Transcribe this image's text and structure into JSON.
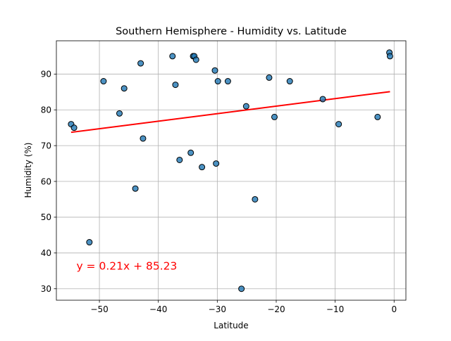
{
  "colors": {
    "background": "#ffffff",
    "grid": "#b0b0b0",
    "point_fill": "#1f77b4",
    "point_edge": "#000000",
    "regression_line": "#ff0000",
    "equation_text": "#ff0000"
  },
  "chart_data": {
    "type": "scatter",
    "title": "Southern Hemisphere - Humidity vs. Latitude",
    "xlabel": "Latitude",
    "ylabel": "Humidity (%)",
    "xlim": [
      -57.3,
      2.0
    ],
    "ylim": [
      26.8,
      99.3
    ],
    "xticks": [
      -50,
      -40,
      -30,
      -20,
      -10,
      0
    ],
    "xtick_labels": [
      "−50",
      "−40",
      "−30",
      "−20",
      "−10",
      "0"
    ],
    "yticks": [
      30,
      40,
      50,
      60,
      70,
      80,
      90
    ],
    "ytick_labels": [
      "30",
      "40",
      "50",
      "60",
      "70",
      "80",
      "90"
    ],
    "grid": true,
    "points": [
      {
        "x": -54.8,
        "y": 76
      },
      {
        "x": -54.3,
        "y": 75
      },
      {
        "x": -51.7,
        "y": 43
      },
      {
        "x": -49.3,
        "y": 88
      },
      {
        "x": -46.6,
        "y": 79
      },
      {
        "x": -45.8,
        "y": 86
      },
      {
        "x": -43.9,
        "y": 58
      },
      {
        "x": -43.0,
        "y": 93
      },
      {
        "x": -42.6,
        "y": 72
      },
      {
        "x": -37.6,
        "y": 95
      },
      {
        "x": -37.1,
        "y": 87
      },
      {
        "x": -36.4,
        "y": 66
      },
      {
        "x": -34.5,
        "y": 68
      },
      {
        "x": -34.1,
        "y": 95
      },
      {
        "x": -33.9,
        "y": 95
      },
      {
        "x": -33.6,
        "y": 94
      },
      {
        "x": -32.6,
        "y": 64
      },
      {
        "x": -30.4,
        "y": 91
      },
      {
        "x": -30.2,
        "y": 65
      },
      {
        "x": -29.9,
        "y": 88
      },
      {
        "x": -28.2,
        "y": 88
      },
      {
        "x": -25.9,
        "y": 30
      },
      {
        "x": -25.1,
        "y": 81
      },
      {
        "x": -23.6,
        "y": 55
      },
      {
        "x": -21.2,
        "y": 89
      },
      {
        "x": -20.3,
        "y": 78
      },
      {
        "x": -17.7,
        "y": 88
      },
      {
        "x": -12.1,
        "y": 83
      },
      {
        "x": -9.4,
        "y": 76
      },
      {
        "x": -2.8,
        "y": 78
      },
      {
        "x": -0.8,
        "y": 96
      },
      {
        "x": -0.7,
        "y": 95
      }
    ],
    "regression": {
      "slope": 0.21,
      "intercept": 85.23,
      "x_range": [
        -54.8,
        -0.7
      ],
      "equation_label": "y = 0.21x + 85.23",
      "label_at": {
        "x": -53.9,
        "y": 35.3
      }
    }
  }
}
